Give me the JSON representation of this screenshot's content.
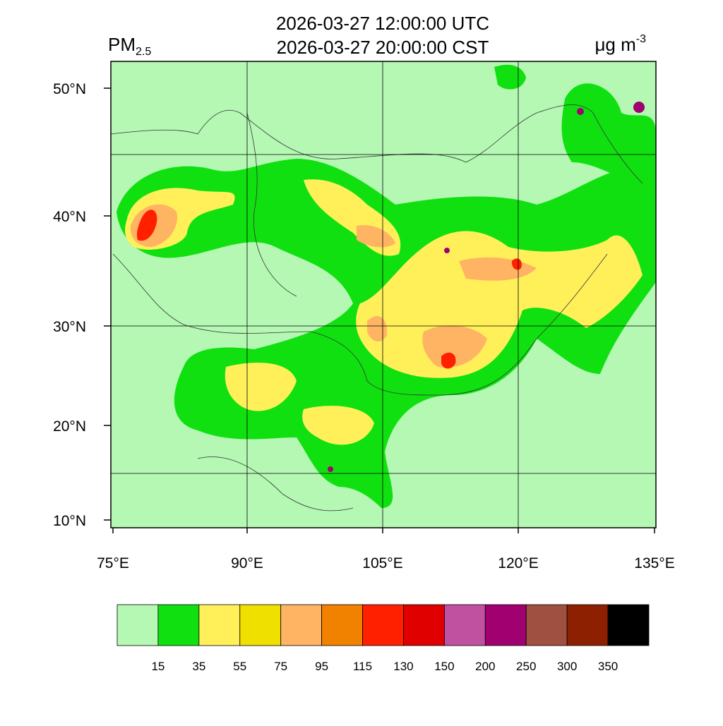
{
  "title": {
    "line1": "2026-03-27 12:00:00 UTC",
    "line2": "2026-03-27 20:00:00 CST"
  },
  "variable": {
    "main": "PM",
    "sub": "2.5"
  },
  "units": {
    "main": "μg m",
    "sup": "-3"
  },
  "lat_labels": [
    "50°N",
    "40°N",
    "30°N",
    "20°N",
    "10°N"
  ],
  "lon_labels": [
    "75°E",
    "90°E",
    "105°E",
    "120°E",
    "135°E"
  ],
  "colorbar": {
    "colors": [
      "#b4f8b4",
      "#10e010",
      "#fff05a",
      "#f0e000",
      "#ffb464",
      "#f08200",
      "#ff2000",
      "#e00000",
      "#c050a0",
      "#a00070",
      "#a05040",
      "#8c2000",
      "#000000"
    ],
    "labels": [
      "15",
      "35",
      "55",
      "75",
      "95",
      "115",
      "130",
      "150",
      "200",
      "250",
      "300",
      "350"
    ]
  }
}
